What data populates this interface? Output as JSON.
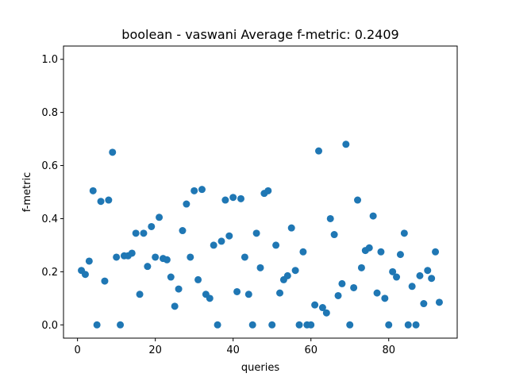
{
  "chart_data": {
    "type": "scatter",
    "title": "boolean - vaswani  Average f-metric: 0.2409",
    "xlabel": "queries",
    "ylabel": "f-metric",
    "xlim": [
      -3.6,
      97.6
    ],
    "ylim": [
      -0.05,
      1.05
    ],
    "xticks": [
      0,
      20,
      40,
      60,
      80
    ],
    "yticks": [
      0.0,
      0.2,
      0.4,
      0.6,
      0.8,
      1.0
    ],
    "xtick_labels": [
      "0",
      "20",
      "40",
      "60",
      "80"
    ],
    "ytick_labels": [
      "0.0",
      "0.2",
      "0.4",
      "0.6",
      "0.8",
      "1.0"
    ],
    "grid": false,
    "marker_color": "#1f77b4",
    "x": [
      1,
      2,
      3,
      4,
      5,
      6,
      7,
      8,
      9,
      10,
      11,
      12,
      13,
      14,
      15,
      16,
      17,
      18,
      19,
      20,
      21,
      22,
      23,
      24,
      25,
      26,
      27,
      28,
      29,
      30,
      31,
      32,
      33,
      34,
      35,
      36,
      37,
      38,
      39,
      40,
      41,
      42,
      43,
      44,
      45,
      46,
      47,
      48,
      49,
      50,
      51,
      52,
      53,
      54,
      55,
      56,
      57,
      58,
      59,
      60,
      61,
      62,
      63,
      64,
      65,
      66,
      67,
      68,
      69,
      70,
      71,
      72,
      73,
      74,
      75,
      76,
      77,
      78,
      79,
      80,
      81,
      82,
      83,
      84,
      85,
      86,
      87,
      88,
      89,
      90,
      91,
      92,
      93
    ],
    "y": [
      0.205,
      0.19,
      0.24,
      0.505,
      0.0,
      0.465,
      0.165,
      0.47,
      0.65,
      0.255,
      0.0,
      0.26,
      0.26,
      0.27,
      0.345,
      0.115,
      0.345,
      0.22,
      0.37,
      0.255,
      0.405,
      0.25,
      0.245,
      0.18,
      0.07,
      0.135,
      0.355,
      0.455,
      0.255,
      0.505,
      0.17,
      0.51,
      0.115,
      0.1,
      0.3,
      0.0,
      0.315,
      0.47,
      0.335,
      0.48,
      0.125,
      0.475,
      0.255,
      0.115,
      0.0,
      0.345,
      0.215,
      0.495,
      0.505,
      0.0,
      0.3,
      0.12,
      0.17,
      0.185,
      0.365,
      0.205,
      0.0,
      0.275,
      0.0,
      0.0,
      0.075,
      0.655,
      0.065,
      0.045,
      0.4,
      0.34,
      0.11,
      0.155,
      0.68,
      0.0,
      0.14,
      0.47,
      0.215,
      0.28,
      0.29,
      0.41,
      0.12,
      0.275,
      0.1,
      0.0,
      0.2,
      0.18,
      0.265,
      0.345,
      0.0,
      0.145,
      0.0,
      0.185,
      0.08,
      0.205,
      0.175,
      0.275,
      0.085
    ]
  }
}
